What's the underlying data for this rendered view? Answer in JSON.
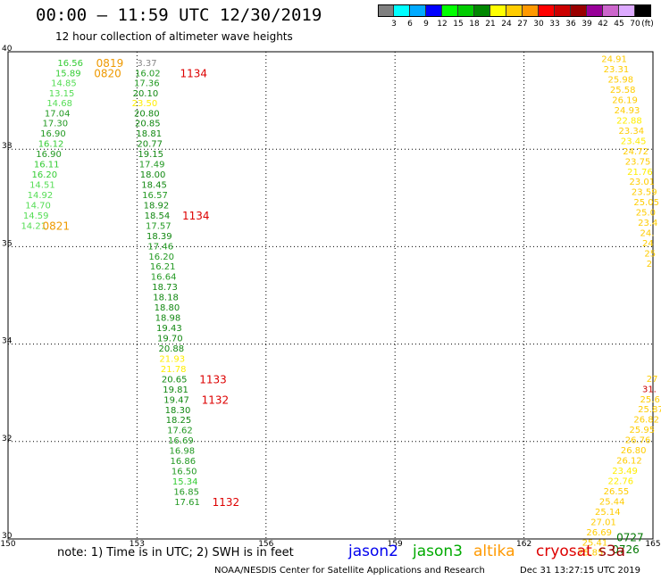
{
  "header": {
    "title": "00:00 – 11:59 UTC 12/30/2019",
    "subtitle": "12 hour collection of altimeter wave heights"
  },
  "legend": {
    "unit": "(ft)",
    "bins": [
      {
        "color": "#808080",
        "label": "3"
      },
      {
        "color": "#00ffff",
        "label": "6"
      },
      {
        "color": "#00aaff",
        "label": "9"
      },
      {
        "color": "#0000ff",
        "label": "12"
      },
      {
        "color": "#00ff00",
        "label": "15"
      },
      {
        "color": "#00cc00",
        "label": "18"
      },
      {
        "color": "#008800",
        "label": "21"
      },
      {
        "color": "#ffff00",
        "label": "24"
      },
      {
        "color": "#ffcc00",
        "label": "27"
      },
      {
        "color": "#ff9900",
        "label": "30"
      },
      {
        "color": "#ff0000",
        "label": "33"
      },
      {
        "color": "#cc0000",
        "label": "36"
      },
      {
        "color": "#990000",
        "label": "39"
      },
      {
        "color": "#990099",
        "label": "42"
      },
      {
        "color": "#cc66cc",
        "label": "45"
      },
      {
        "color": "#ddaaff",
        "label": "70"
      },
      {
        "color": "#000000",
        "label": ""
      }
    ]
  },
  "map": {
    "lon_range": [
      150,
      165
    ],
    "lat_range": [
      30,
      40
    ],
    "lon_ticks": [
      "150",
      "153",
      "156",
      "159",
      "162",
      "165"
    ],
    "lat_ticks": [
      "30",
      "32",
      "34",
      "36",
      "38",
      "40"
    ]
  },
  "chart_data": {
    "type": "scatter",
    "description_units": "SWH in feet; time labels UTC HHMM",
    "tracks": [
      {
        "satellite": "jason3",
        "points": [
          {
            "lon": 151.15,
            "lat": 39.78,
            "v": "16.56",
            "c": "#33cc33"
          },
          {
            "lon": 151.1,
            "lat": 39.57,
            "v": "15.89",
            "c": "#33cc33"
          },
          {
            "lon": 151.0,
            "lat": 39.37,
            "v": "14.85",
            "c": "#55dd55"
          },
          {
            "lon": 150.95,
            "lat": 39.16,
            "v": "13.15",
            "c": "#55dd55"
          },
          {
            "lon": 150.9,
            "lat": 38.96,
            "v": "14.68",
            "c": "#55dd55"
          },
          {
            "lon": 150.85,
            "lat": 38.75,
            "v": "17.04",
            "c": "#229922"
          },
          {
            "lon": 150.8,
            "lat": 38.54,
            "v": "17.30",
            "c": "#229922"
          },
          {
            "lon": 150.75,
            "lat": 38.33,
            "v": "16.90",
            "c": "#229922"
          },
          {
            "lon": 150.7,
            "lat": 38.12,
            "v": "16.12",
            "c": "#33cc33"
          },
          {
            "lon": 150.65,
            "lat": 37.91,
            "v": "16.90",
            "c": "#229922"
          },
          {
            "lon": 150.6,
            "lat": 37.7,
            "v": "16.11",
            "c": "#33cc33"
          },
          {
            "lon": 150.55,
            "lat": 37.49,
            "v": "16.20",
            "c": "#33cc33"
          },
          {
            "lon": 150.5,
            "lat": 37.28,
            "v": "14.51",
            "c": "#55dd55"
          },
          {
            "lon": 150.45,
            "lat": 37.07,
            "v": "14.92",
            "c": "#55dd55"
          },
          {
            "lon": 150.4,
            "lat": 36.86,
            "v": "14.70",
            "c": "#55dd55"
          },
          {
            "lon": 150.35,
            "lat": 36.65,
            "v": "14.59",
            "c": "#55dd55"
          },
          {
            "lon": 150.3,
            "lat": 36.44,
            "v": "14.21",
            "c": "#55dd55"
          }
        ]
      },
      {
        "satellite": "jason3",
        "points": [
          {
            "lon": 153.0,
            "lat": 39.78,
            "v": "3.37",
            "c": "#888888"
          },
          {
            "lon": 152.95,
            "lat": 39.57,
            "v": "16.02",
            "c": "#229922"
          },
          {
            "lon": 152.93,
            "lat": 39.37,
            "v": "17.36",
            "c": "#229922"
          },
          {
            "lon": 152.9,
            "lat": 39.16,
            "v": "20.10",
            "c": "#118811"
          },
          {
            "lon": 152.88,
            "lat": 38.96,
            "v": "23.50",
            "c": "#ffee00"
          },
          {
            "lon": 152.93,
            "lat": 38.75,
            "v": "20.80",
            "c": "#118811"
          },
          {
            "lon": 152.95,
            "lat": 38.54,
            "v": "20.85",
            "c": "#118811"
          },
          {
            "lon": 152.98,
            "lat": 38.33,
            "v": "18.81",
            "c": "#118811"
          },
          {
            "lon": 153.0,
            "lat": 38.12,
            "v": "20.77",
            "c": "#118811"
          },
          {
            "lon": 153.02,
            "lat": 37.91,
            "v": "19.15",
            "c": "#118811"
          },
          {
            "lon": 153.05,
            "lat": 37.7,
            "v": "17.49",
            "c": "#229922"
          },
          {
            "lon": 153.07,
            "lat": 37.49,
            "v": "18.00",
            "c": "#118811"
          },
          {
            "lon": 153.1,
            "lat": 37.28,
            "v": "18.45",
            "c": "#118811"
          },
          {
            "lon": 153.12,
            "lat": 37.07,
            "v": "16.57",
            "c": "#229922"
          },
          {
            "lon": 153.15,
            "lat": 36.86,
            "v": "18.92",
            "c": "#118811"
          },
          {
            "lon": 153.17,
            "lat": 36.65,
            "v": "18.54",
            "c": "#118811"
          },
          {
            "lon": 153.2,
            "lat": 36.44,
            "v": "17.57",
            "c": "#229922"
          },
          {
            "lon": 153.22,
            "lat": 36.23,
            "v": "18.39",
            "c": "#118811"
          },
          {
            "lon": 153.25,
            "lat": 36.02,
            "v": "17.46",
            "c": "#229922"
          },
          {
            "lon": 153.27,
            "lat": 35.81,
            "v": "16.20",
            "c": "#229922"
          },
          {
            "lon": 153.3,
            "lat": 35.6,
            "v": "16.21",
            "c": "#229922"
          },
          {
            "lon": 153.32,
            "lat": 35.39,
            "v": "16.64",
            "c": "#229922"
          },
          {
            "lon": 153.35,
            "lat": 35.18,
            "v": "18.73",
            "c": "#118811"
          },
          {
            "lon": 153.37,
            "lat": 34.97,
            "v": "18.18",
            "c": "#118811"
          },
          {
            "lon": 153.4,
            "lat": 34.76,
            "v": "18.80",
            "c": "#118811"
          },
          {
            "lon": 153.42,
            "lat": 34.55,
            "v": "18.98",
            "c": "#118811"
          },
          {
            "lon": 153.45,
            "lat": 34.34,
            "v": "19.43",
            "c": "#118811"
          },
          {
            "lon": 153.47,
            "lat": 34.13,
            "v": "19.70",
            "c": "#118811"
          },
          {
            "lon": 153.5,
            "lat": 33.92,
            "v": "20.88",
            "c": "#118811"
          },
          {
            "lon": 153.52,
            "lat": 33.71,
            "v": "21.93",
            "c": "#ffee00"
          },
          {
            "lon": 153.55,
            "lat": 33.5,
            "v": "21.78",
            "c": "#ffee00"
          },
          {
            "lon": 153.57,
            "lat": 33.29,
            "v": "20.65",
            "c": "#118811"
          },
          {
            "lon": 153.6,
            "lat": 33.08,
            "v": "19.81",
            "c": "#118811"
          },
          {
            "lon": 153.62,
            "lat": 32.87,
            "v": "19.47",
            "c": "#118811"
          },
          {
            "lon": 153.65,
            "lat": 32.66,
            "v": "18.30",
            "c": "#118811"
          },
          {
            "lon": 153.67,
            "lat": 32.45,
            "v": "18.25",
            "c": "#118811"
          },
          {
            "lon": 153.7,
            "lat": 32.24,
            "v": "17.62",
            "c": "#229922"
          },
          {
            "lon": 153.72,
            "lat": 32.03,
            "v": "16.69",
            "c": "#229922"
          },
          {
            "lon": 153.75,
            "lat": 31.82,
            "v": "16.98",
            "c": "#229922"
          },
          {
            "lon": 153.77,
            "lat": 31.61,
            "v": "16.86",
            "c": "#229922"
          },
          {
            "lon": 153.8,
            "lat": 31.4,
            "v": "16.50",
            "c": "#229922"
          },
          {
            "lon": 153.82,
            "lat": 31.19,
            "v": "15.34",
            "c": "#33cc33"
          },
          {
            "lon": 153.85,
            "lat": 30.98,
            "v": "16.85",
            "c": "#229922"
          },
          {
            "lon": 153.87,
            "lat": 30.77,
            "v": "17.61",
            "c": "#229922"
          }
        ]
      },
      {
        "satellite": "altika",
        "points": [
          {
            "lon": 163.8,
            "lat": 39.86,
            "v": "24.91",
            "c": "#ffcc00"
          },
          {
            "lon": 163.85,
            "lat": 39.65,
            "v": "23.31",
            "c": "#ffcc00"
          },
          {
            "lon": 163.95,
            "lat": 39.44,
            "v": "25.98",
            "c": "#ffcc00"
          },
          {
            "lon": 164.0,
            "lat": 39.23,
            "v": "25.58",
            "c": "#ffcc00"
          },
          {
            "lon": 164.05,
            "lat": 39.02,
            "v": "26.19",
            "c": "#ffcc00"
          },
          {
            "lon": 164.1,
            "lat": 38.81,
            "v": "24.93",
            "c": "#ffcc00"
          },
          {
            "lon": 164.15,
            "lat": 38.6,
            "v": "22.88",
            "c": "#ffee00"
          },
          {
            "lon": 164.2,
            "lat": 38.39,
            "v": "23.34",
            "c": "#ffcc00"
          },
          {
            "lon": 164.25,
            "lat": 38.18,
            "v": "23.45",
            "c": "#ffee00"
          },
          {
            "lon": 164.3,
            "lat": 37.97,
            "v": "24.72",
            "c": "#ffcc00"
          },
          {
            "lon": 164.35,
            "lat": 37.76,
            "v": "23.75",
            "c": "#ffcc00"
          },
          {
            "lon": 164.4,
            "lat": 37.55,
            "v": "21.76",
            "c": "#ffee00"
          },
          {
            "lon": 164.45,
            "lat": 37.34,
            "v": "23.01",
            "c": "#ffcc00"
          },
          {
            "lon": 164.5,
            "lat": 37.13,
            "v": "23.59",
            "c": "#ffcc00"
          },
          {
            "lon": 164.55,
            "lat": 36.92,
            "v": "25.05",
            "c": "#ffcc00"
          },
          {
            "lon": 164.6,
            "lat": 36.71,
            "v": "25.0",
            "c": "#ffcc00"
          },
          {
            "lon": 164.65,
            "lat": 36.5,
            "v": "23.4",
            "c": "#ffcc00"
          },
          {
            "lon": 164.7,
            "lat": 36.29,
            "v": "24.",
            "c": "#ffcc00"
          },
          {
            "lon": 164.75,
            "lat": 36.08,
            "v": "24",
            "c": "#ffcc00"
          },
          {
            "lon": 164.8,
            "lat": 35.87,
            "v": "25",
            "c": "#ffcc00"
          },
          {
            "lon": 164.85,
            "lat": 35.66,
            "v": "2",
            "c": "#ffcc00"
          }
        ]
      },
      {
        "satellite": "altika",
        "points": [
          {
            "lon": 164.85,
            "lat": 33.3,
            "v": "27",
            "c": "#ffcc00"
          },
          {
            "lon": 164.75,
            "lat": 33.09,
            "v": "31.",
            "c": "#cc0000"
          },
          {
            "lon": 164.7,
            "lat": 32.88,
            "v": "25.6",
            "c": "#ffcc00"
          },
          {
            "lon": 164.65,
            "lat": 32.67,
            "v": "25.87",
            "c": "#ffcc00"
          },
          {
            "lon": 164.55,
            "lat": 32.46,
            "v": "26.82",
            "c": "#ffcc00"
          },
          {
            "lon": 164.45,
            "lat": 32.25,
            "v": "25.95",
            "c": "#ffcc00"
          },
          {
            "lon": 164.35,
            "lat": 32.04,
            "v": "26.76",
            "c": "#ffcc00"
          },
          {
            "lon": 164.25,
            "lat": 31.83,
            "v": "26.80",
            "c": "#ffcc00"
          },
          {
            "lon": 164.15,
            "lat": 31.62,
            "v": "26.12",
            "c": "#ffcc00"
          },
          {
            "lon": 164.05,
            "lat": 31.41,
            "v": "23.49",
            "c": "#ffee00"
          },
          {
            "lon": 163.95,
            "lat": 31.2,
            "v": "22.76",
            "c": "#ffee00"
          },
          {
            "lon": 163.85,
            "lat": 30.99,
            "v": "26.55",
            "c": "#ffcc00"
          },
          {
            "lon": 163.75,
            "lat": 30.78,
            "v": "25.44",
            "c": "#ffcc00"
          },
          {
            "lon": 163.65,
            "lat": 30.57,
            "v": "25.14",
            "c": "#ffcc00"
          },
          {
            "lon": 163.55,
            "lat": 30.36,
            "v": "27.01",
            "c": "#ffcc00"
          },
          {
            "lon": 163.45,
            "lat": 30.15,
            "v": "26.69",
            "c": "#ffcc00"
          },
          {
            "lon": 163.35,
            "lat": 29.94,
            "v": "25.41",
            "c": "#ffcc00"
          },
          {
            "lon": 163.25,
            "lat": 29.73,
            "v": "25.85",
            "c": "#ffcc00"
          }
        ]
      }
    ],
    "time_labels": [
      {
        "lon": 152.05,
        "lat": 39.78,
        "t": "0819",
        "c": "#ee9900"
      },
      {
        "lon": 152.0,
        "lat": 39.57,
        "t": "0820",
        "c": "#ee9900"
      },
      {
        "lon": 154.0,
        "lat": 39.57,
        "t": "1134",
        "c": "#dd0000"
      },
      {
        "lon": 154.05,
        "lat": 36.65,
        "t": "1134",
        "c": "#dd0000"
      },
      {
        "lon": 150.8,
        "lat": 36.44,
        "t": "0821",
        "c": "#ee9900"
      },
      {
        "lon": 154.45,
        "lat": 33.29,
        "t": "1133",
        "c": "#dd0000"
      },
      {
        "lon": 154.5,
        "lat": 32.87,
        "t": "1132",
        "c": "#dd0000"
      },
      {
        "lon": 154.75,
        "lat": 30.77,
        "t": "1132",
        "c": "#dd0000"
      },
      {
        "lon": 164.15,
        "lat": 30.05,
        "t": "0727",
        "c": "#007700"
      },
      {
        "lon": 164.05,
        "lat": 29.8,
        "t": "0726",
        "c": "#007700"
      }
    ]
  },
  "footer": {
    "note": "note:  1) Time is in UTC;  2) SWH is in feet",
    "satellites": [
      {
        "name": "jason2",
        "color": "#0000ee"
      },
      {
        "name": "jason3",
        "color": "#00aa00"
      },
      {
        "name": "altika",
        "color": "#ff9900"
      },
      {
        "name": "cryosat",
        "color": "#dd0000"
      },
      {
        "name": "s3a",
        "color": "#990000"
      }
    ],
    "credit": "NOAA/NESDIS Center for Satellite Applications and Research",
    "generated": "Dec 31 13:27:15 UTC 2019"
  }
}
